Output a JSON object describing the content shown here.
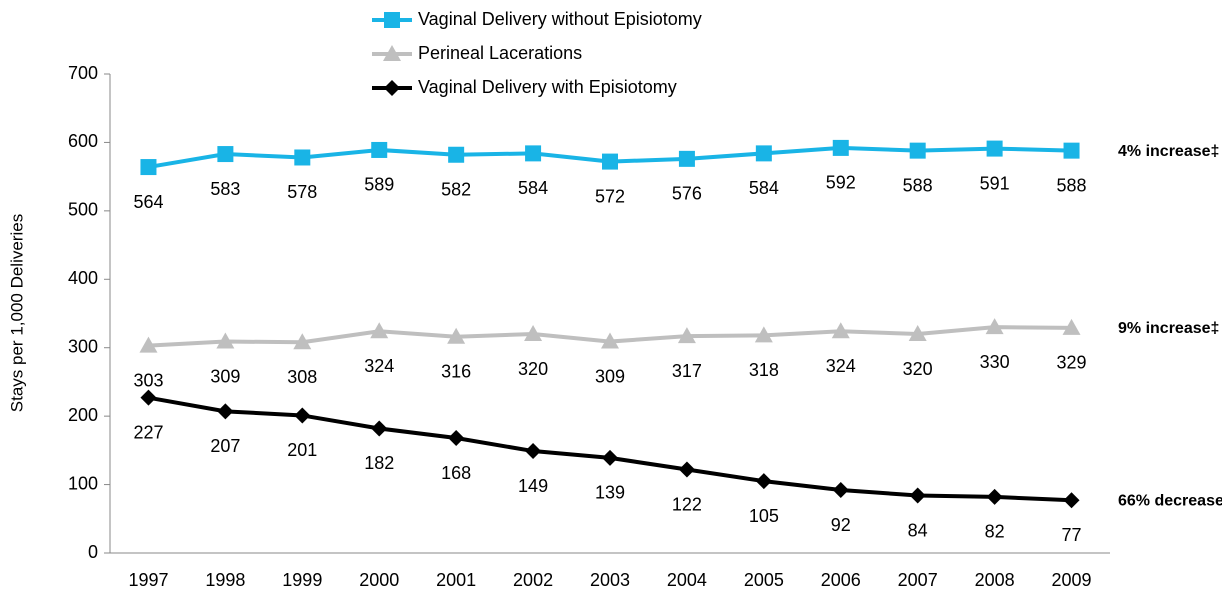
{
  "chart_data": {
    "type": "line",
    "y_label": "Stays per 1,000 Deliveries",
    "categories": [
      "1997",
      "1998",
      "1999",
      "2000",
      "2001",
      "2002",
      "2003",
      "2004",
      "2005",
      "2006",
      "2007",
      "2008",
      "2009"
    ],
    "series": [
      {
        "name": "Vaginal Delivery without Episiotomy",
        "color": "#19b4e6",
        "marker": "square",
        "values": [
          564,
          583,
          578,
          589,
          582,
          584,
          572,
          576,
          584,
          592,
          588,
          591,
          588
        ],
        "annotation": "4% increase‡"
      },
      {
        "name": "Perineal Lacerations",
        "color": "#bfbfbf",
        "marker": "triangle",
        "values": [
          303,
          309,
          308,
          324,
          316,
          320,
          309,
          317,
          318,
          324,
          320,
          330,
          329
        ],
        "annotation": "9% increase‡"
      },
      {
        "name": "Vaginal Delivery with Episiotomy",
        "color": "#000000",
        "marker": "diamond",
        "values": [
          227,
          207,
          201,
          182,
          168,
          149,
          139,
          122,
          105,
          92,
          84,
          82,
          77
        ],
        "annotation": "66% decrease"
      }
    ],
    "ylim": [
      0,
      700
    ],
    "yticks": [
      0,
      100,
      200,
      300,
      400,
      500,
      600,
      700
    ],
    "grid": false
  }
}
